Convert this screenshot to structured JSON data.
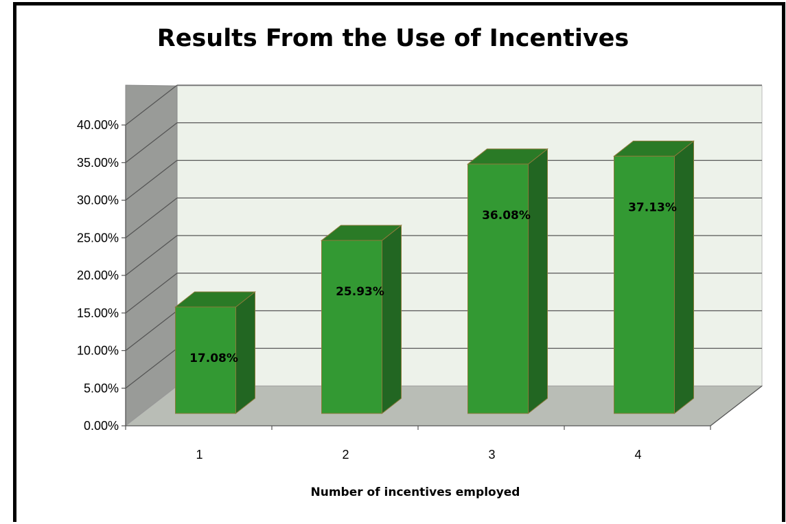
{
  "chart_data": {
    "type": "bar",
    "title": "Results From the Use of Incentives",
    "xlabel": "Number of incentives employed",
    "ylabel": "",
    "categories": [
      "1",
      "2",
      "3",
      "4"
    ],
    "values": [
      17.08,
      25.93,
      36.08,
      37.13
    ],
    "data_labels": [
      "17.08%",
      "25.93%",
      "36.08%",
      "37.13%"
    ],
    "ylim": [
      0,
      40
    ],
    "y_ticks": [
      "0.00%",
      "5.00%",
      "10.00%",
      "15.00%",
      "20.00%",
      "25.00%",
      "30.00%",
      "35.00%",
      "40.00%"
    ],
    "grid": true,
    "style": "3d-column",
    "colors": {
      "bar_front": "#339933",
      "bar_top": "#2a7a26",
      "bar_side": "#226622",
      "bar_edge": "#8a7a3a",
      "back_wall": "#edf2ea",
      "side_wall": "#999b98",
      "floor": "#b9bdb6",
      "gridline": "#555555"
    }
  }
}
